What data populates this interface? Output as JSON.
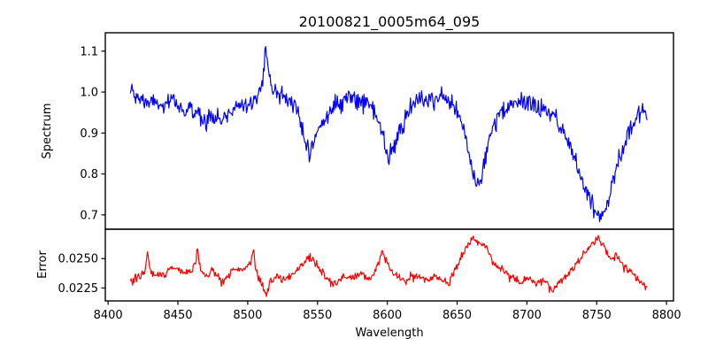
{
  "figure": {
    "background": "#ffffff",
    "spine_color": "#000000",
    "text_color": "#000000"
  },
  "chart_data": {
    "type": "line",
    "title": "20100821_0005m64_095",
    "xlabel": "Wavelength",
    "grid": false,
    "legend": null,
    "xlim": [
      8398,
      8805
    ],
    "x_data_range": [
      8416,
      8786
    ],
    "n_points": 700,
    "xticks": {
      "values": [
        8400,
        8450,
        8500,
        8550,
        8600,
        8650,
        8700,
        8750,
        8800
      ],
      "labels": [
        "8400",
        "8450",
        "8500",
        "8550",
        "8600",
        "8650",
        "8700",
        "8750",
        "8800"
      ]
    },
    "noise_seed": 1234,
    "panels": [
      {
        "name": "spectrum",
        "ylabel": "Spectrum",
        "color": "#0000ff",
        "ylim": [
          0.665,
          1.145
        ],
        "yticks": {
          "values": [
            0.7,
            0.8,
            0.9,
            1.0,
            1.1
          ],
          "labels": [
            "0.7",
            "0.8",
            "0.9",
            "1.0",
            "1.1"
          ]
        },
        "noise_sigma": 0.0105,
        "features": "continuum near 1.0; shallow dip ~0.93 at 8465-8485; narrow emission peak 1.115 at 8513; absorption dips: 8543 (0.86), 8601 (0.84), 8663 (0.78), 8751 (0.70)",
        "envelope": [
          [
            8416,
            1.005
          ],
          [
            8419,
            0.99
          ],
          [
            8422,
            0.98
          ],
          [
            8425,
            0.985
          ],
          [
            8428,
            0.972
          ],
          [
            8431,
            0.98
          ],
          [
            8434,
            0.968
          ],
          [
            8437,
            0.975
          ],
          [
            8440,
            0.958
          ],
          [
            8443,
            0.968
          ],
          [
            8446,
            0.983
          ],
          [
            8449,
            0.973
          ],
          [
            8452,
            0.963
          ],
          [
            8455,
            0.95
          ],
          [
            8458,
            0.962
          ],
          [
            8461,
            0.945
          ],
          [
            8464,
            0.952
          ],
          [
            8467,
            0.94
          ],
          [
            8470,
            0.934
          ],
          [
            8473,
            0.945
          ],
          [
            8476,
            0.938
          ],
          [
            8479,
            0.933
          ],
          [
            8482,
            0.93
          ],
          [
            8485,
            0.942
          ],
          [
            8488,
            0.955
          ],
          [
            8491,
            0.965
          ],
          [
            8494,
            0.97
          ],
          [
            8497,
            0.974
          ],
          [
            8500,
            0.98
          ],
          [
            8503,
            0.972
          ],
          [
            8506,
            0.982
          ],
          [
            8509,
            1.0
          ],
          [
            8511,
            1.045
          ],
          [
            8513,
            1.115
          ],
          [
            8515,
            1.05
          ],
          [
            8517,
            1.012
          ],
          [
            8520,
            1.0
          ],
          [
            8523,
            0.996
          ],
          [
            8526,
            0.99
          ],
          [
            8529,
            0.986
          ],
          [
            8532,
            0.975
          ],
          [
            8535,
            0.952
          ],
          [
            8538,
            0.925
          ],
          [
            8541,
            0.885
          ],
          [
            8544,
            0.862
          ],
          [
            8547,
            0.873
          ],
          [
            8550,
            0.898
          ],
          [
            8553,
            0.922
          ],
          [
            8556,
            0.94
          ],
          [
            8559,
            0.952
          ],
          [
            8562,
            0.962
          ],
          [
            8565,
            0.972
          ],
          [
            8568,
            0.98
          ],
          [
            8571,
            0.986
          ],
          [
            8574,
            0.99
          ],
          [
            8577,
            0.986
          ],
          [
            8580,
            0.985
          ],
          [
            8583,
            0.98
          ],
          [
            8586,
            0.974
          ],
          [
            8589,
            0.963
          ],
          [
            8592,
            0.94
          ],
          [
            8595,
            0.908
          ],
          [
            8598,
            0.87
          ],
          [
            8601,
            0.842
          ],
          [
            8604,
            0.853
          ],
          [
            8607,
            0.882
          ],
          [
            8610,
            0.912
          ],
          [
            8613,
            0.936
          ],
          [
            8616,
            0.955
          ],
          [
            8619,
            0.966
          ],
          [
            8622,
            0.975
          ],
          [
            8625,
            0.98
          ],
          [
            8628,
            0.982
          ],
          [
            8631,
            0.985
          ],
          [
            8634,
            0.986
          ],
          [
            8637,
            0.988
          ],
          [
            8640,
            0.984
          ],
          [
            8643,
            0.979
          ],
          [
            8646,
            0.97
          ],
          [
            8649,
            0.956
          ],
          [
            8652,
            0.936
          ],
          [
            8655,
            0.908
          ],
          [
            8658,
            0.862
          ],
          [
            8661,
            0.8
          ],
          [
            8664,
            0.776
          ],
          [
            8667,
            0.792
          ],
          [
            8670,
            0.835
          ],
          [
            8673,
            0.884
          ],
          [
            8676,
            0.914
          ],
          [
            8679,
            0.934
          ],
          [
            8682,
            0.948
          ],
          [
            8685,
            0.956
          ],
          [
            8688,
            0.964
          ],
          [
            8691,
            0.97
          ],
          [
            8694,
            0.974
          ],
          [
            8697,
            0.976
          ],
          [
            8700,
            0.975
          ],
          [
            8703,
            0.972
          ],
          [
            8706,
            0.967
          ],
          [
            8709,
            0.962
          ],
          [
            8712,
            0.956
          ],
          [
            8715,
            0.951
          ],
          [
            8718,
            0.945
          ],
          [
            8721,
            0.936
          ],
          [
            8724,
            0.916
          ],
          [
            8727,
            0.896
          ],
          [
            8730,
            0.874
          ],
          [
            8733,
            0.846
          ],
          [
            8736,
            0.82
          ],
          [
            8739,
            0.794
          ],
          [
            8742,
            0.768
          ],
          [
            8745,
            0.744
          ],
          [
            8748,
            0.722
          ],
          [
            8751,
            0.705
          ],
          [
            8754,
            0.702
          ],
          [
            8757,
            0.724
          ],
          [
            8760,
            0.76
          ],
          [
            8763,
            0.8
          ],
          [
            8766,
            0.835
          ],
          [
            8769,
            0.866
          ],
          [
            8772,
            0.892
          ],
          [
            8775,
            0.915
          ],
          [
            8778,
            0.935
          ],
          [
            8781,
            0.948
          ],
          [
            8784,
            0.958
          ],
          [
            8786,
            0.948
          ]
        ]
      },
      {
        "name": "error",
        "ylabel": "Error",
        "color": "#ff0000",
        "ylim": [
          0.0214,
          0.0275
        ],
        "yticks": {
          "values": [
            0.0225,
            0.025
          ],
          "labels": [
            "0.0225",
            "0.0250"
          ]
        },
        "noise_sigma": 0.00018,
        "features": "baseline ~0.0235; narrow spikes at 8428, 8464, 8504, 8540-8546, 8596 (~0.0255-0.0259); broad humps at 8662 and 8751 reaching ~0.027; low troughs ~0.0222 near 8514 and 8719",
        "envelope": [
          [
            8416,
            0.0231
          ],
          [
            8419,
            0.0233
          ],
          [
            8422,
            0.0234
          ],
          [
            8425,
            0.0236
          ],
          [
            8427,
            0.0242
          ],
          [
            8428,
            0.0258
          ],
          [
            8430,
            0.0242
          ],
          [
            8433,
            0.0235
          ],
          [
            8436,
            0.0235
          ],
          [
            8439,
            0.0237
          ],
          [
            8442,
            0.0239
          ],
          [
            8445,
            0.0242
          ],
          [
            8448,
            0.0242
          ],
          [
            8451,
            0.0238
          ],
          [
            8454,
            0.0238
          ],
          [
            8457,
            0.0239
          ],
          [
            8460,
            0.024
          ],
          [
            8462,
            0.0245
          ],
          [
            8464,
            0.0258
          ],
          [
            8466,
            0.0241
          ],
          [
            8469,
            0.0236
          ],
          [
            8472,
            0.0237
          ],
          [
            8475,
            0.0241
          ],
          [
            8478,
            0.0237
          ],
          [
            8481,
            0.0231
          ],
          [
            8484,
            0.0233
          ],
          [
            8487,
            0.0236
          ],
          [
            8490,
            0.024
          ],
          [
            8493,
            0.0242
          ],
          [
            8496,
            0.0241
          ],
          [
            8499,
            0.0243
          ],
          [
            8502,
            0.0247
          ],
          [
            8504,
            0.0257
          ],
          [
            8506,
            0.024
          ],
          [
            8509,
            0.0229
          ],
          [
            8512,
            0.0223
          ],
          [
            8514,
            0.0221
          ],
          [
            8516,
            0.0229
          ],
          [
            8519,
            0.0233
          ],
          [
            8522,
            0.0235
          ],
          [
            8525,
            0.0232
          ],
          [
            8528,
            0.0233
          ],
          [
            8531,
            0.0235
          ],
          [
            8534,
            0.0238
          ],
          [
            8537,
            0.0242
          ],
          [
            8540,
            0.0246
          ],
          [
            8543,
            0.0251
          ],
          [
            8546,
            0.0251
          ],
          [
            8549,
            0.0246
          ],
          [
            8552,
            0.024
          ],
          [
            8555,
            0.0235
          ],
          [
            8558,
            0.0231
          ],
          [
            8561,
            0.0229
          ],
          [
            8564,
            0.023
          ],
          [
            8567,
            0.0232
          ],
          [
            8570,
            0.0234
          ],
          [
            8573,
            0.0233
          ],
          [
            8576,
            0.0234
          ],
          [
            8579,
            0.0236
          ],
          [
            8582,
            0.0239
          ],
          [
            8585,
            0.0234
          ],
          [
            8588,
            0.0231
          ],
          [
            8591,
            0.0239
          ],
          [
            8594,
            0.0248
          ],
          [
            8596,
            0.0256
          ],
          [
            8599,
            0.025
          ],
          [
            8602,
            0.0242
          ],
          [
            8605,
            0.0237
          ],
          [
            8608,
            0.0234
          ],
          [
            8611,
            0.0231
          ],
          [
            8614,
            0.0229
          ],
          [
            8617,
            0.0236
          ],
          [
            8620,
            0.0235
          ],
          [
            8623,
            0.0234
          ],
          [
            8626,
            0.0233
          ],
          [
            8629,
            0.0232
          ],
          [
            8632,
            0.0233
          ],
          [
            8635,
            0.0234
          ],
          [
            8638,
            0.0233
          ],
          [
            8641,
            0.023
          ],
          [
            8644,
            0.0228
          ],
          [
            8647,
            0.0236
          ],
          [
            8650,
            0.0244
          ],
          [
            8653,
            0.0251
          ],
          [
            8656,
            0.0259
          ],
          [
            8659,
            0.0264
          ],
          [
            8662,
            0.0268
          ],
          [
            8665,
            0.0263
          ],
          [
            8668,
            0.0262
          ],
          [
            8671,
            0.0259
          ],
          [
            8674,
            0.0252
          ],
          [
            8677,
            0.0246
          ],
          [
            8680,
            0.0243
          ],
          [
            8683,
            0.024
          ],
          [
            8686,
            0.0237
          ],
          [
            8689,
            0.0234
          ],
          [
            8692,
            0.0232
          ],
          [
            8695,
            0.023
          ],
          [
            8698,
            0.0231
          ],
          [
            8701,
            0.0233
          ],
          [
            8704,
            0.0231
          ],
          [
            8707,
            0.0229
          ],
          [
            8710,
            0.0232
          ],
          [
            8713,
            0.023
          ],
          [
            8716,
            0.0225
          ],
          [
            8719,
            0.0222
          ],
          [
            8722,
            0.0229
          ],
          [
            8725,
            0.0231
          ],
          [
            8728,
            0.0234
          ],
          [
            8731,
            0.0238
          ],
          [
            8734,
            0.0243
          ],
          [
            8737,
            0.0248
          ],
          [
            8740,
            0.0253
          ],
          [
            8743,
            0.0258
          ],
          [
            8746,
            0.0262
          ],
          [
            8749,
            0.0266
          ],
          [
            8751,
            0.0269
          ],
          [
            8753,
            0.0264
          ],
          [
            8756,
            0.0259
          ],
          [
            8759,
            0.0253
          ],
          [
            8762,
            0.025
          ],
          [
            8764,
            0.0253
          ],
          [
            8767,
            0.0248
          ],
          [
            8770,
            0.0243
          ],
          [
            8773,
            0.0241
          ],
          [
            8776,
            0.0237
          ],
          [
            8779,
            0.0232
          ],
          [
            8782,
            0.0229
          ],
          [
            8784,
            0.0228
          ],
          [
            8786,
            0.0227
          ]
        ]
      }
    ]
  }
}
